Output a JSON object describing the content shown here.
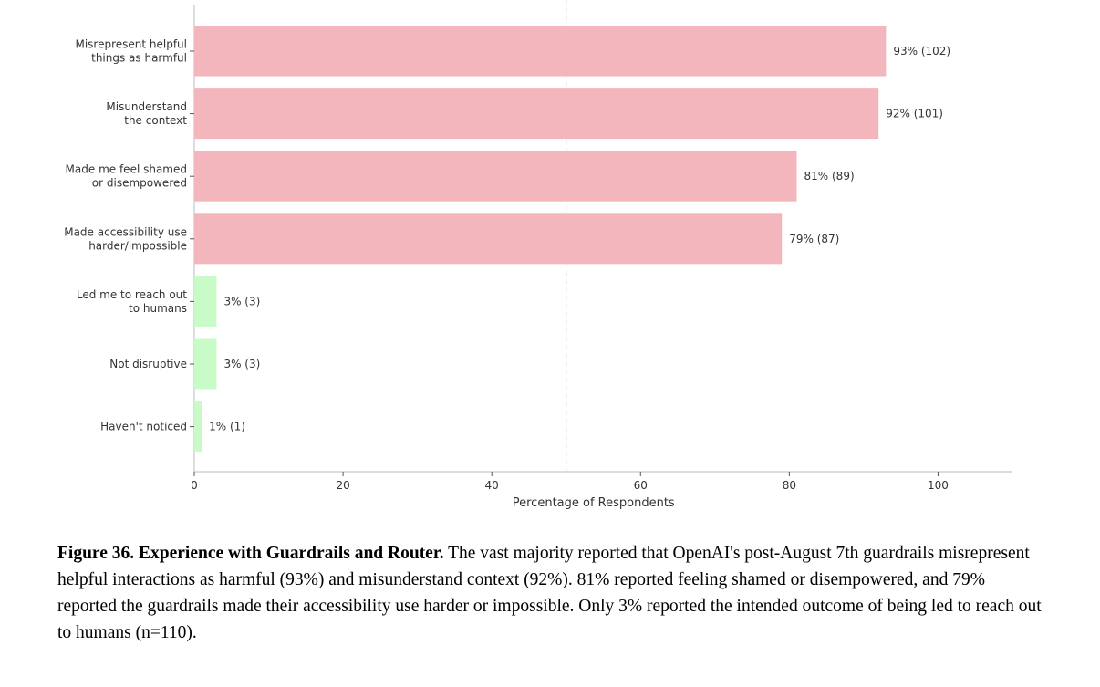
{
  "chart_data": {
    "type": "bar",
    "orientation": "horizontal",
    "categories": [
      [
        "Misrepresent helpful",
        "things as harmful"
      ],
      [
        "Misunderstand",
        "the context"
      ],
      [
        "Made me feel shamed",
        "or disempowered"
      ],
      [
        "Made accessibility use",
        "harder/impossible"
      ],
      [
        "Led me to reach out",
        "to humans"
      ],
      [
        "Not disruptive"
      ],
      [
        "Haven't noticed"
      ]
    ],
    "values": [
      93,
      92,
      81,
      79,
      3,
      3,
      1
    ],
    "counts": [
      102,
      101,
      89,
      87,
      3,
      3,
      1
    ],
    "bar_labels": [
      "93% (102)",
      "92% (101)",
      "81% (89)",
      "79% (87)",
      "3% (3)",
      "3% (3)",
      "1% (1)"
    ],
    "bar_colors": [
      "#f2b6bc",
      "#f2b6bc",
      "#f2b6bc",
      "#f2b6bc",
      "#c9fbc9",
      "#c9fbc9",
      "#c9fbc9"
    ],
    "xlabel": "Percentage of Respondents",
    "ylabel": "",
    "xlim": [
      0,
      110
    ],
    "x_ticks": [
      0,
      20,
      40,
      60,
      80,
      100
    ],
    "reference_line_x": 50,
    "grid": false,
    "legend": "none"
  },
  "caption": {
    "label": "Figure 36. Experience with Guardrails and Router.",
    "text": " The vast majority reported that OpenAI's post-August 7th guardrails misrepresent helpful interactions as harmful (93%) and misunderstand context (92%). 81% reported feeling shamed or disempowered, and 79% reported the guardrails made their accessibility use harder or impossible. Only 3% reported the intended outcome of being led to reach out to humans (n=110)."
  }
}
